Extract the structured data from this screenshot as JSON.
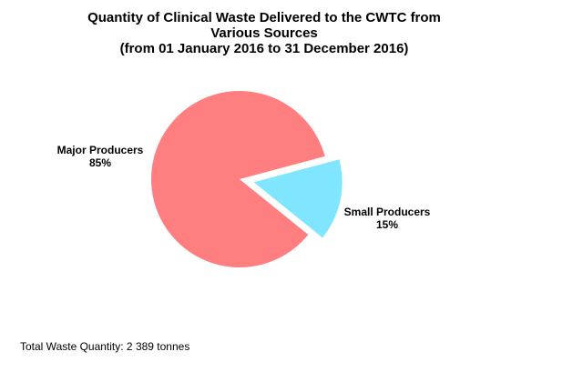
{
  "chart_data": {
    "type": "pie",
    "title": [
      "Quantity of Clinical Waste Delivered to the CWTC from",
      "Various Sources",
      "(from 01 January 2016 to 31 December 2016)"
    ],
    "slices": [
      {
        "label": "Major Producers",
        "value": 85,
        "value_label": "85%",
        "color": "#FF7F80",
        "exploded": false
      },
      {
        "label": "Small Producers",
        "value": 15,
        "value_label": "15%",
        "color": "#80E5FF",
        "exploded": true
      }
    ],
    "legend": "none"
  },
  "footer": {
    "total": "Total Waste Quantity: 2 389 tonnes"
  }
}
